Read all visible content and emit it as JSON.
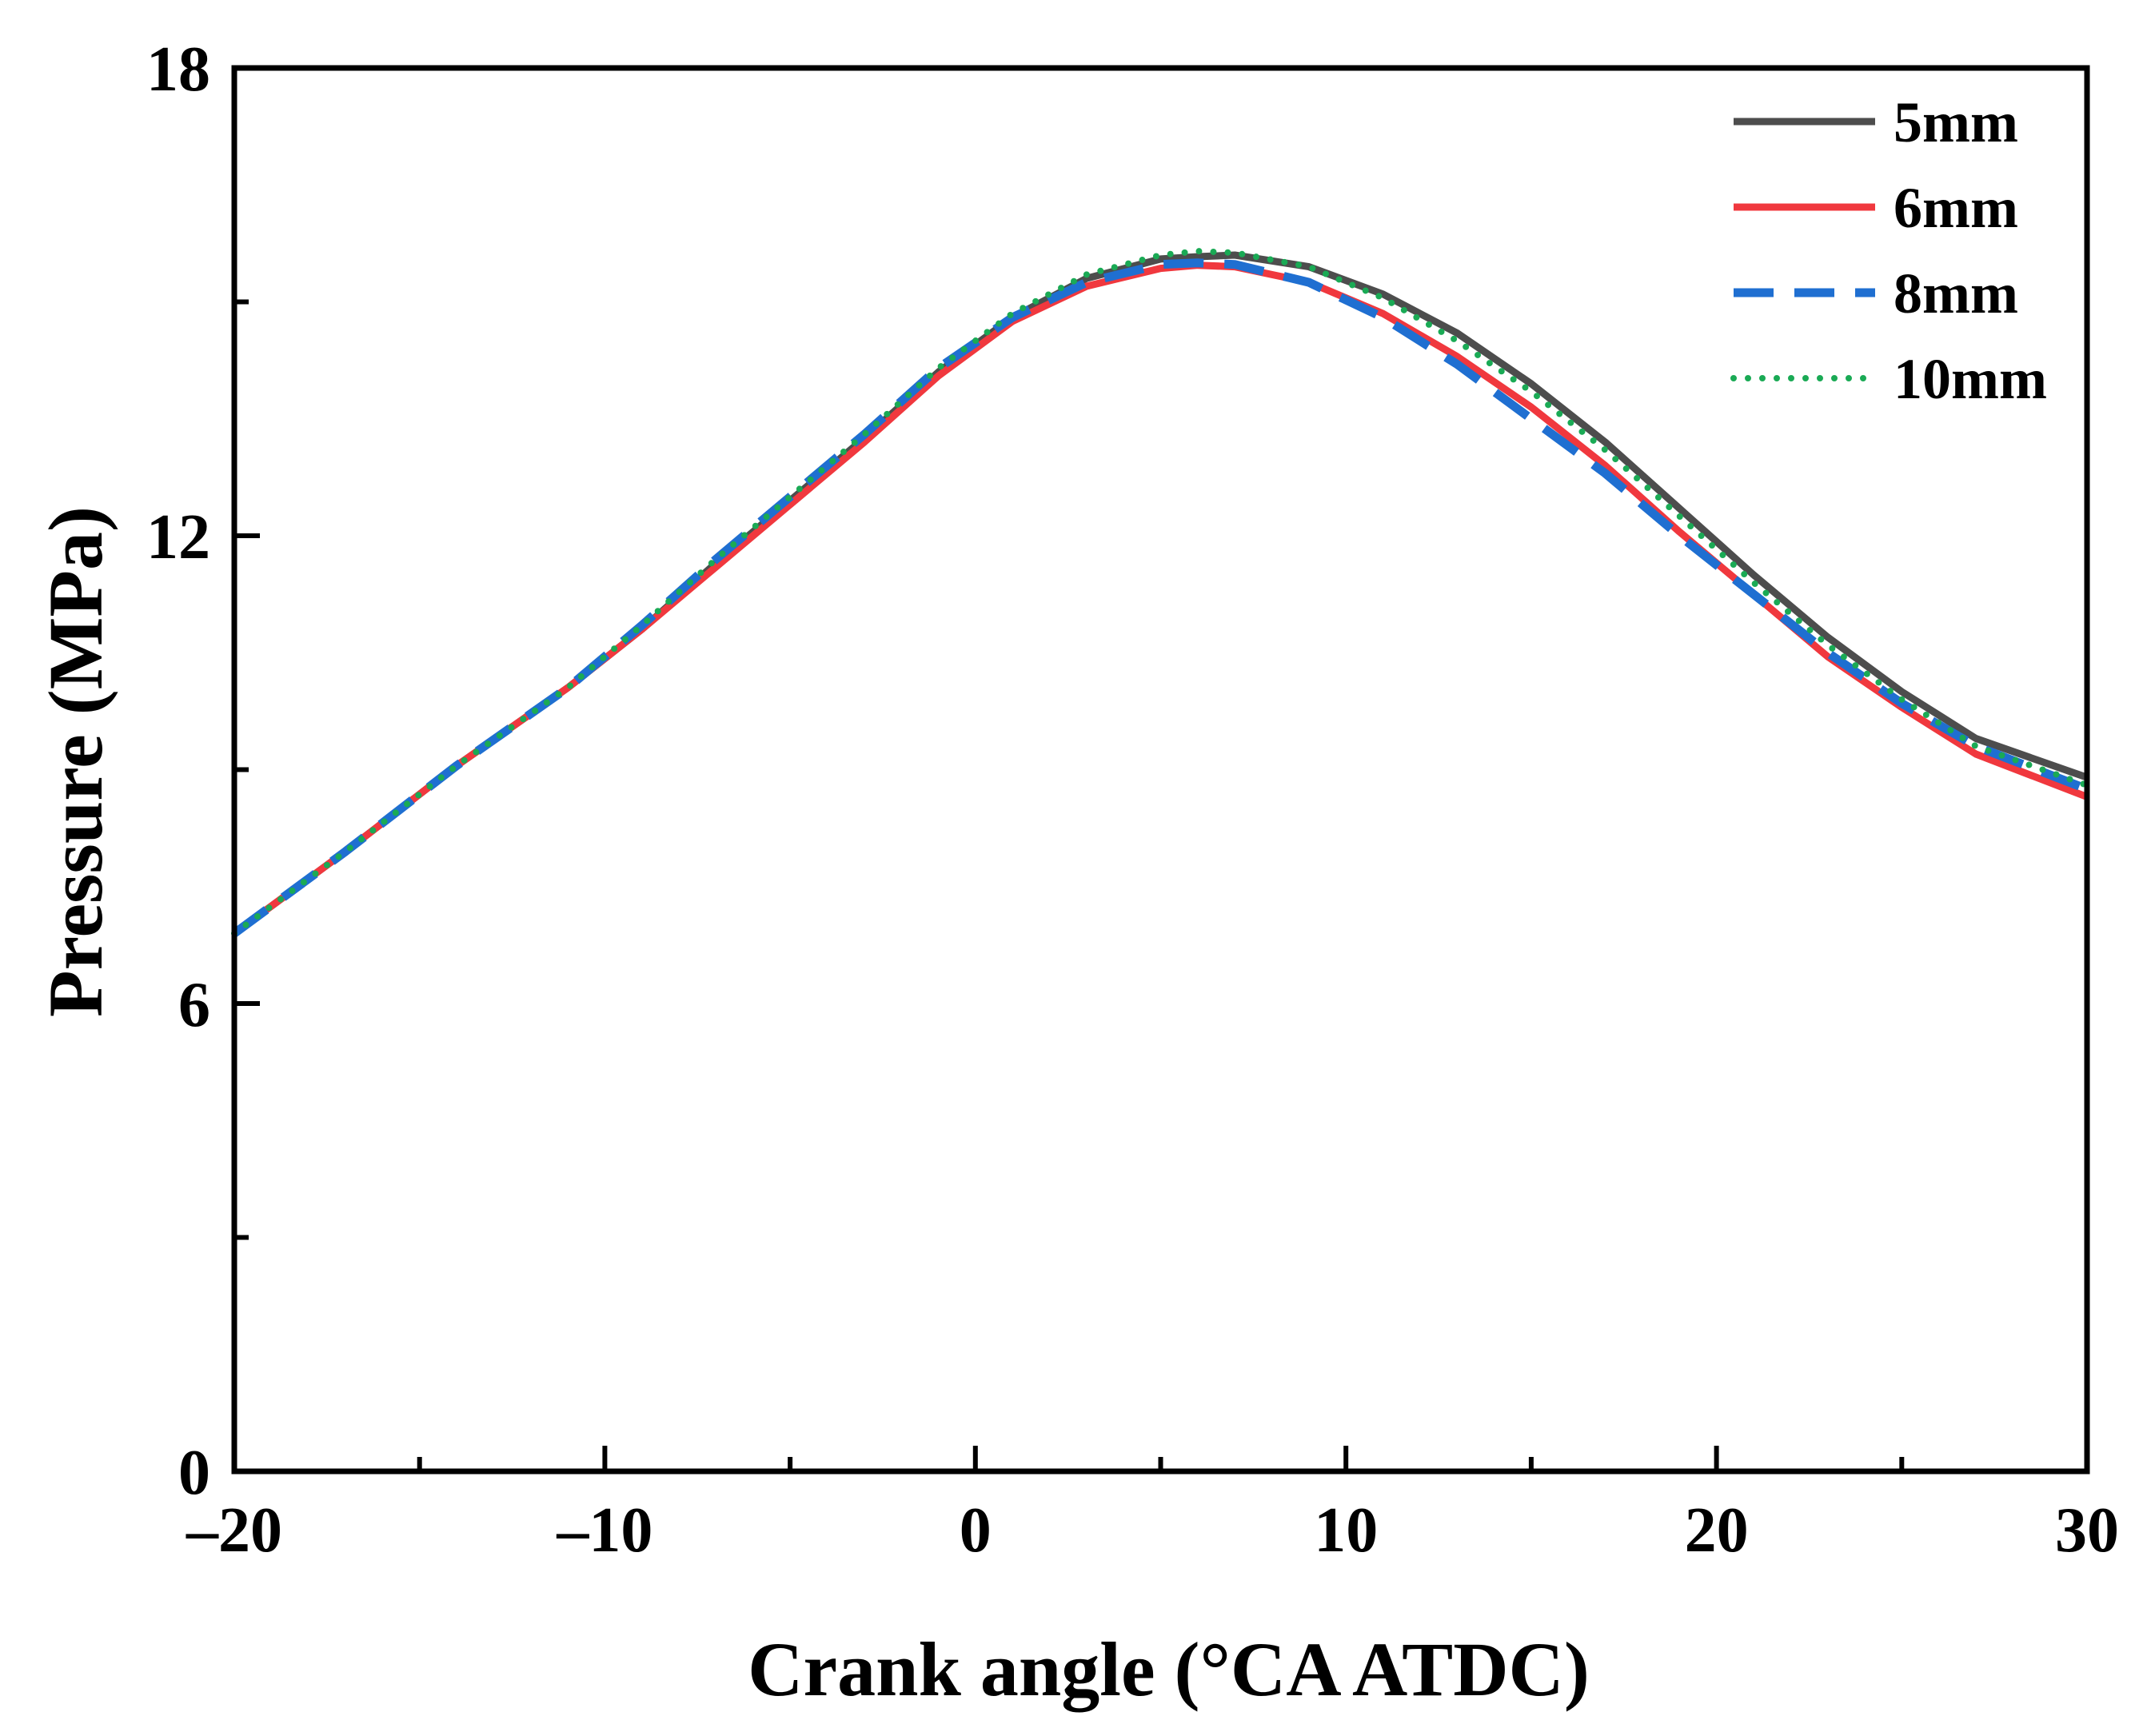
{
  "chart_data": {
    "type": "line",
    "title": "",
    "xlabel": "Crank angle (°CA ATDC)",
    "ylabel": "Pressure (MPa)",
    "xlim": [
      -20,
      30
    ],
    "ylim": [
      0,
      18
    ],
    "xticks": [
      -20,
      -10,
      0,
      10,
      20,
      30
    ],
    "xtick_labels": [
      "–20",
      "–10",
      "0",
      "10",
      "20",
      "30"
    ],
    "yticks": [
      0,
      6,
      12,
      18
    ],
    "ytick_labels": [
      "0",
      "6",
      "12",
      "18"
    ],
    "x_minor_step": 5,
    "y_minor_step": 3,
    "legend_position": "top-right",
    "grid": false,
    "series": [
      {
        "name": "5mm",
        "color": "#4d4d4d",
        "style": "solid",
        "x": [
          -20,
          -17,
          -14,
          -11,
          -9,
          -7,
          -5,
          -3,
          -1,
          1,
          3,
          5,
          6,
          7,
          9,
          11,
          13,
          15,
          17,
          19,
          21,
          23,
          25,
          27,
          30
        ],
        "y": [
          6.9,
          7.95,
          9.05,
          10.05,
          10.8,
          11.65,
          12.45,
          13.25,
          14.1,
          14.8,
          15.3,
          15.55,
          15.58,
          15.6,
          15.45,
          15.1,
          14.6,
          13.95,
          13.2,
          12.35,
          11.5,
          10.7,
          10.0,
          9.4,
          8.9
        ]
      },
      {
        "name": "6mm",
        "color": "#f0383e",
        "style": "solid",
        "x": [
          -20,
          -17,
          -14,
          -11,
          -9,
          -7,
          -5,
          -3,
          -1,
          1,
          3,
          5,
          6,
          7,
          9,
          11,
          13,
          15,
          17,
          19,
          21,
          23,
          25,
          27,
          30
        ],
        "y": [
          6.9,
          7.95,
          9.05,
          10.05,
          10.8,
          11.6,
          12.4,
          13.2,
          14.05,
          14.75,
          15.2,
          15.43,
          15.47,
          15.45,
          15.25,
          14.85,
          14.3,
          13.65,
          12.9,
          12.05,
          11.25,
          10.45,
          9.8,
          9.2,
          8.65
        ]
      },
      {
        "name": "8mm",
        "color": "#1f6fd1",
        "style": "dashed",
        "x": [
          -20,
          -17,
          -14,
          -11,
          -9,
          -7,
          -5,
          -3,
          -1,
          1,
          3,
          5,
          6,
          7,
          9,
          11,
          13,
          15,
          17,
          19,
          21,
          23,
          25,
          27,
          30
        ],
        "y": [
          6.9,
          7.95,
          9.05,
          10.05,
          10.85,
          11.7,
          12.5,
          13.3,
          14.15,
          14.8,
          15.25,
          15.48,
          15.5,
          15.48,
          15.25,
          14.8,
          14.2,
          13.5,
          12.8,
          12.0,
          11.25,
          10.5,
          9.85,
          9.3,
          8.75
        ]
      },
      {
        "name": "10mm",
        "color": "#1aaa55",
        "style": "dotted",
        "x": [
          -20,
          -17,
          -14,
          -11,
          -9,
          -7,
          -5,
          -3,
          -1,
          1,
          3,
          5,
          6,
          7,
          9,
          11,
          13,
          15,
          17,
          19,
          21,
          23,
          25,
          27,
          30
        ],
        "y": [
          6.9,
          7.95,
          9.05,
          10.05,
          10.85,
          11.7,
          12.5,
          13.3,
          14.15,
          14.85,
          15.35,
          15.6,
          15.65,
          15.63,
          15.45,
          15.05,
          14.5,
          13.85,
          13.1,
          12.25,
          11.4,
          10.6,
          9.9,
          9.3,
          8.8
        ]
      }
    ]
  }
}
